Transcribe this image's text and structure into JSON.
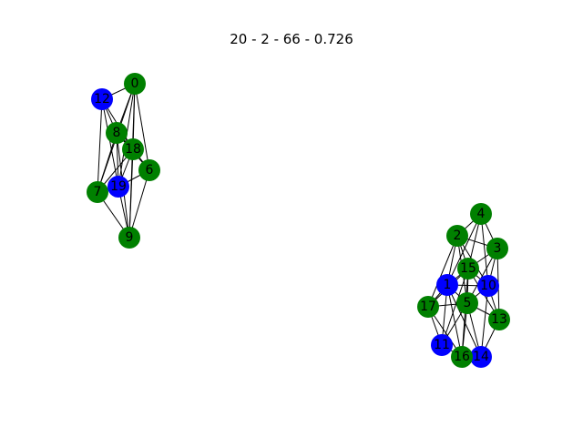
{
  "title": "20 - 2 - 66 - 0.726",
  "colors": {
    "group_a": "#008000",
    "group_b": "#0000ff",
    "edge": "#000000",
    "label": "#000000",
    "background": "#ffffff"
  },
  "nodes": [
    {
      "id": "0",
      "color": "group_a"
    },
    {
      "id": "1",
      "color": "group_b"
    },
    {
      "id": "2",
      "color": "group_a"
    },
    {
      "id": "3",
      "color": "group_a"
    },
    {
      "id": "4",
      "color": "group_a"
    },
    {
      "id": "5",
      "color": "group_a"
    },
    {
      "id": "6",
      "color": "group_a"
    },
    {
      "id": "7",
      "color": "group_a"
    },
    {
      "id": "8",
      "color": "group_a"
    },
    {
      "id": "9",
      "color": "group_a"
    },
    {
      "id": "10",
      "color": "group_b"
    },
    {
      "id": "11",
      "color": "group_b"
    },
    {
      "id": "12",
      "color": "group_b"
    },
    {
      "id": "13",
      "color": "group_a"
    },
    {
      "id": "14",
      "color": "group_b"
    },
    {
      "id": "15",
      "color": "group_a"
    },
    {
      "id": "16",
      "color": "group_a"
    },
    {
      "id": "17",
      "color": "group_a"
    },
    {
      "id": "18",
      "color": "group_a"
    },
    {
      "id": "19",
      "color": "group_b"
    }
  ],
  "edges": [
    [
      "0",
      "12"
    ],
    [
      "0",
      "8"
    ],
    [
      "0",
      "18"
    ],
    [
      "0",
      "6"
    ],
    [
      "0",
      "19"
    ],
    [
      "0",
      "9"
    ],
    [
      "0",
      "7"
    ],
    [
      "12",
      "8"
    ],
    [
      "12",
      "18"
    ],
    [
      "12",
      "7"
    ],
    [
      "12",
      "19"
    ],
    [
      "8",
      "18"
    ],
    [
      "8",
      "7"
    ],
    [
      "8",
      "19"
    ],
    [
      "8",
      "9"
    ],
    [
      "8",
      "6"
    ],
    [
      "18",
      "6"
    ],
    [
      "18",
      "19"
    ],
    [
      "18",
      "7"
    ],
    [
      "18",
      "9"
    ],
    [
      "6",
      "19"
    ],
    [
      "6",
      "9"
    ],
    [
      "7",
      "19"
    ],
    [
      "7",
      "9"
    ],
    [
      "19",
      "9"
    ],
    [
      "4",
      "2"
    ],
    [
      "4",
      "3"
    ],
    [
      "4",
      "15"
    ],
    [
      "4",
      "10"
    ],
    [
      "4",
      "1"
    ],
    [
      "2",
      "3"
    ],
    [
      "2",
      "15"
    ],
    [
      "2",
      "1"
    ],
    [
      "2",
      "10"
    ],
    [
      "2",
      "5"
    ],
    [
      "2",
      "17"
    ],
    [
      "3",
      "15"
    ],
    [
      "3",
      "10"
    ],
    [
      "3",
      "5"
    ],
    [
      "3",
      "13"
    ],
    [
      "15",
      "1"
    ],
    [
      "15",
      "10"
    ],
    [
      "15",
      "5"
    ],
    [
      "15",
      "17"
    ],
    [
      "15",
      "11"
    ],
    [
      "15",
      "16"
    ],
    [
      "15",
      "13"
    ],
    [
      "1",
      "17"
    ],
    [
      "1",
      "5"
    ],
    [
      "1",
      "11"
    ],
    [
      "1",
      "16"
    ],
    [
      "1",
      "14"
    ],
    [
      "1",
      "10"
    ],
    [
      "10",
      "5"
    ],
    [
      "10",
      "13"
    ],
    [
      "10",
      "14"
    ],
    [
      "5",
      "17"
    ],
    [
      "5",
      "11"
    ],
    [
      "5",
      "16"
    ],
    [
      "5",
      "14"
    ],
    [
      "5",
      "13"
    ],
    [
      "17",
      "11"
    ],
    [
      "17",
      "16"
    ],
    [
      "11",
      "16"
    ],
    [
      "16",
      "14"
    ],
    [
      "13",
      "14"
    ]
  ]
}
